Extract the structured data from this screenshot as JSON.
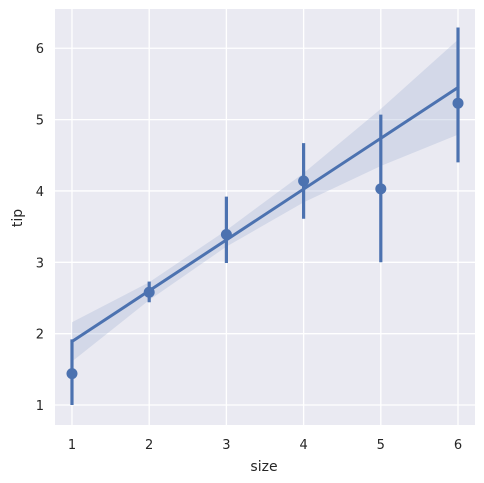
{
  "chart_data": {
    "type": "scatter",
    "title": "",
    "xlabel": "size",
    "ylabel": "tip",
    "xlim": [
      0.78,
      6.22
    ],
    "ylim": [
      0.72,
      6.55
    ],
    "x_ticks": [
      1,
      2,
      3,
      4,
      5,
      6
    ],
    "y_ticks": [
      1,
      2,
      3,
      4,
      5,
      6
    ],
    "grid": true,
    "background": "#eaeaf2",
    "grid_color": "#ffffff",
    "series_color": "#4c72b0",
    "band_color": "#a8b6d8",
    "points": [
      {
        "x": 1,
        "y": 1.44,
        "ci": [
          1.0,
          1.92
        ]
      },
      {
        "x": 2,
        "y": 2.58,
        "ci": [
          2.44,
          2.73
        ]
      },
      {
        "x": 3,
        "y": 3.39,
        "ci": [
          2.99,
          3.92
        ]
      },
      {
        "x": 4,
        "y": 4.14,
        "ci": [
          3.61,
          4.67
        ]
      },
      {
        "x": 5,
        "y": 4.03,
        "ci": [
          3.0,
          5.07
        ]
      },
      {
        "x": 6,
        "y": 5.23,
        "ci": [
          4.4,
          6.29
        ]
      }
    ],
    "regression": {
      "x": [
        1,
        6
      ],
      "y": [
        1.89,
        5.45
      ]
    },
    "confidence_band": {
      "x": [
        1,
        2,
        3,
        4,
        5,
        6
      ],
      "upper": [
        2.16,
        2.72,
        3.45,
        4.25,
        5.15,
        6.12
      ],
      "lower": [
        1.61,
        2.47,
        3.22,
        3.84,
        4.35,
        4.79
      ]
    }
  }
}
